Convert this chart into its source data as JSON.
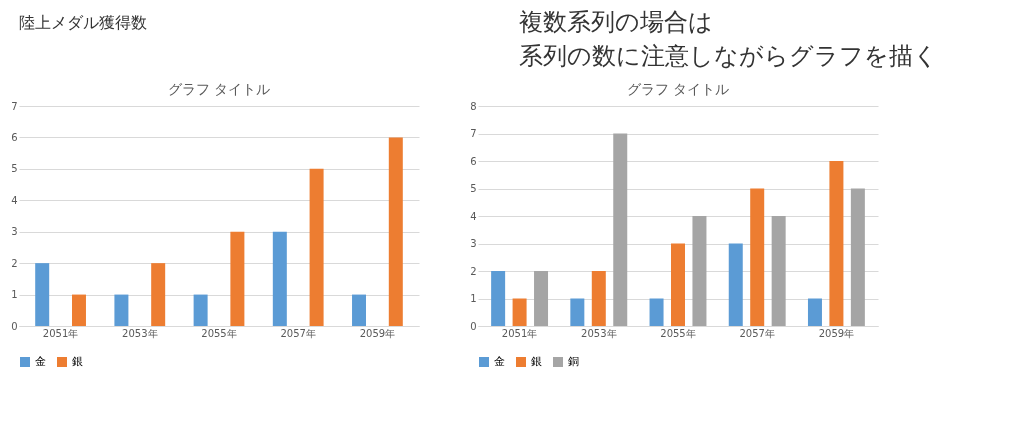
{
  "chart_data": [
    {
      "type": "bar",
      "title": "グラフ タイトル",
      "categories": [
        "2051年",
        "2053年",
        "2055年",
        "2057年",
        "2059年"
      ],
      "series": [
        {
          "name": "金",
          "color": "#5b9bd5",
          "values": [
            2,
            1,
            1,
            3,
            1
          ]
        },
        {
          "name": "銀",
          "color": "#ed7d31",
          "values": [
            1,
            2,
            3,
            5,
            6
          ]
        }
      ],
      "ylim": [
        0,
        7
      ],
      "yticks": [
        0,
        1,
        2,
        3,
        4,
        5,
        6,
        7
      ],
      "grid": "y",
      "legend": "bottom",
      "annotations": [
        "陸上メダル獲得数",
        "複数系列の場合は",
        "系列の数に注意しながらグラフを描く"
      ]
    },
    {
      "type": "bar",
      "title": "グラフ タイトル",
      "categories": [
        "2051年",
        "2053年",
        "2055年",
        "2057年",
        "2059年"
      ],
      "series": [
        {
          "name": "金",
          "color": "#5b9bd5",
          "values": [
            2,
            1,
            1,
            3,
            1
          ]
        },
        {
          "name": "銀",
          "color": "#ed7d31",
          "values": [
            1,
            2,
            3,
            5,
            6
          ]
        },
        {
          "name": "銅",
          "color": "#a5a5a5",
          "values": [
            2,
            7,
            4,
            4,
            5
          ]
        }
      ],
      "ylim": [
        0,
        8
      ],
      "yticks": [
        0,
        1,
        2,
        3,
        4,
        5,
        6,
        7,
        8
      ],
      "grid": "y",
      "legend": "bottom"
    }
  ]
}
